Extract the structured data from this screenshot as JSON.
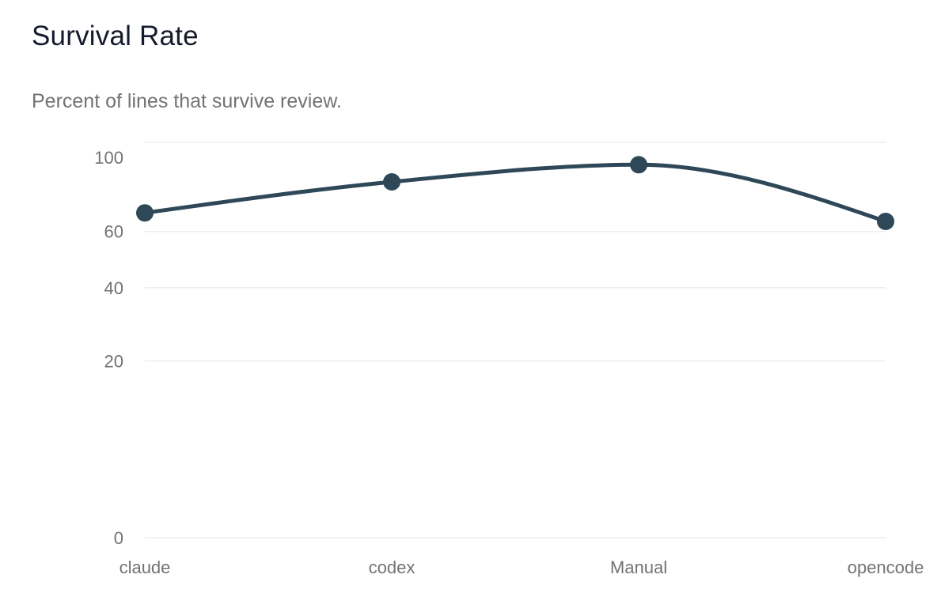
{
  "header": {
    "title": "Survival Rate",
    "subtitle": "Percent of lines that survive review."
  },
  "chart_data": {
    "type": "line",
    "title": "Survival Rate",
    "subtitle": "Percent of lines that survive review.",
    "xlabel": "",
    "ylabel": "",
    "categories": [
      "claude",
      "codex",
      "Manual",
      "opencode"
    ],
    "series": [
      {
        "name": "Survival Rate",
        "values": [
          67.5,
          81,
          89,
          64
        ],
        "color": "#2f4858"
      }
    ],
    "y_scale": "sqrt",
    "ylim": [
      0,
      100
    ],
    "y_ticks": [
      0,
      20,
      40,
      60,
      100
    ],
    "grid": true,
    "legend": "none",
    "curve": "monotone"
  }
}
